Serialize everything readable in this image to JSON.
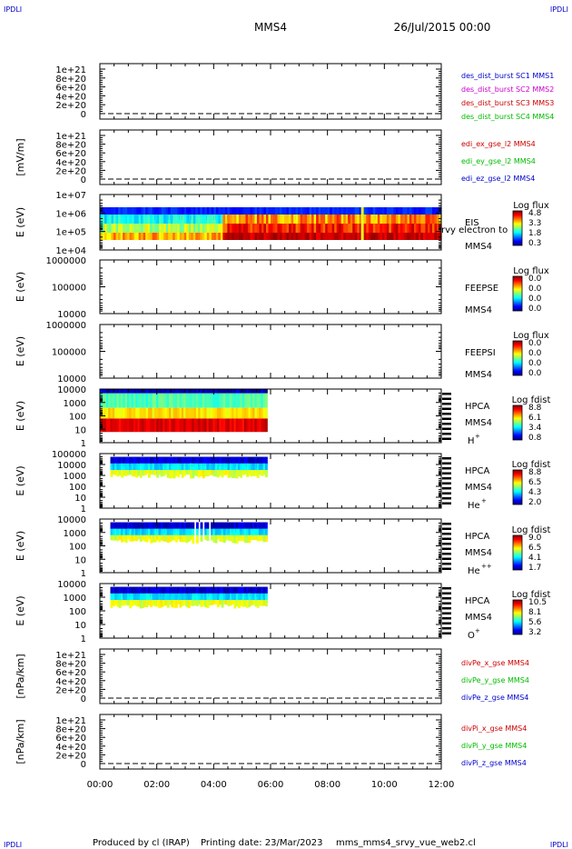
{
  "header": {
    "corner_tl": "IPDLI",
    "corner_tr": "IPDLI",
    "title": "MMS4",
    "date": "26/Jul/2015 00:00",
    "corner_bl": "IPDLI",
    "corner_br": "IPDLI"
  },
  "footer": {
    "producer": "Produced by cl (IRAP)",
    "printing_date": "Printing date: 23/Mar/2023",
    "script": "mms_mms4_srvy_vue_web2.cl"
  },
  "colors": {
    "blue": "#0000cc",
    "magenta": "#cc00cc",
    "red": "#cc0000",
    "green": "#00bb00"
  },
  "chart_data": {
    "type": "heatmap",
    "x_axis": {
      "range": [
        "00:00",
        "12:00"
      ],
      "ticks": [
        "00:00",
        "02:00",
        "04:00",
        "06:00",
        "08:00",
        "10:00",
        "12:00"
      ]
    },
    "panels": [
      {
        "id": "des",
        "kind": "line",
        "ylabel": "",
        "ticks": [
          "1e+21",
          "8e+20",
          "6e+20",
          "4e+20",
          "2e+20",
          "0"
        ],
        "legend": [
          {
            "text": "des_dist_burst SC1 MMS1",
            "color": "#0000cc"
          },
          {
            "text": "des_dist_burst SC2 MMS2",
            "color": "#cc00cc"
          },
          {
            "text": "des_dist_burst SC3 MMS3",
            "color": "#cc0000"
          },
          {
            "text": "des_dist_burst SC4 MMS4",
            "color": "#00bb00"
          }
        ]
      },
      {
        "id": "edi",
        "kind": "line",
        "ylabel": "[mV/m]",
        "ticks": [
          "1e+21",
          "8e+20",
          "6e+20",
          "4e+20",
          "2e+20",
          "0"
        ],
        "legend": [
          {
            "text": "edi_ex_gse_l2 MMS4",
            "color": "#cc0000"
          },
          {
            "text": "edi_ey_gse_l2 MMS4",
            "color": "#00bb00"
          },
          {
            "text": "edi_ez_gse_l2 MMS4",
            "color": "#0000cc"
          }
        ]
      },
      {
        "id": "eis",
        "kind": "spectrogram",
        "ylabel": "E (eV)",
        "ticks": [
          "1e+07",
          "1e+06",
          "1e+05",
          "1e+04"
        ],
        "right_labels": [
          "EIS",
          "MMS4"
        ],
        "extra_label": "rvy electron to",
        "cbar_title": "Log flux",
        "cbar_ticks": [
          "4.8",
          "3.3",
          "1.8",
          "0.3"
        ]
      },
      {
        "id": "feepse",
        "kind": "spectrogram",
        "ylabel": "E (eV)",
        "ticks": [
          "1000000",
          "100000",
          "10000"
        ],
        "right_labels": [
          "FEEPSE",
          "MMS4"
        ],
        "cbar_title": "Log flux",
        "cbar_ticks": [
          "0.0",
          "0.0",
          "0.0",
          "0.0"
        ]
      },
      {
        "id": "feepsi",
        "kind": "spectrogram",
        "ylabel": "E (eV)",
        "ticks": [
          "1000000",
          "100000",
          "10000"
        ],
        "right_labels": [
          "FEEPSI",
          "MMS4"
        ],
        "cbar_title": "Log flux",
        "cbar_ticks": [
          "0.0",
          "0.0",
          "0.0",
          "0.0"
        ]
      },
      {
        "id": "hpca_h",
        "kind": "spectrogram",
        "ylabel": "E (eV)",
        "ticks": [
          "10000",
          "1000",
          "100",
          "10",
          "1"
        ],
        "right_labels": [
          "HPCA",
          "MMS4"
        ],
        "species": "H",
        "species_sup": "+",
        "cbar_title": "Log fdist",
        "cbar_ticks": [
          "8.8",
          "6.1",
          "3.4",
          "0.8"
        ]
      },
      {
        "id": "hpca_he",
        "kind": "spectrogram",
        "ylabel": "E (eV)",
        "ticks": [
          "100000",
          "10000",
          "1000",
          "100",
          "10",
          "1"
        ],
        "right_labels": [
          "HPCA",
          "MMS4"
        ],
        "species": "He",
        "species_sup": "+",
        "cbar_title": "Log fdist",
        "cbar_ticks": [
          "8.8",
          "6.5",
          "4.3",
          "2.0"
        ]
      },
      {
        "id": "hpca_hepp",
        "kind": "spectrogram",
        "ylabel": "E (eV)",
        "ticks": [
          "10000",
          "1000",
          "100",
          "10",
          "1"
        ],
        "right_labels": [
          "HPCA",
          "MMS4"
        ],
        "species": "He",
        "species_sup": "++",
        "cbar_title": "Log fdist",
        "cbar_ticks": [
          "9.0",
          "6.5",
          "4.1",
          "1.7"
        ]
      },
      {
        "id": "hpca_o",
        "kind": "spectrogram",
        "ylabel": "E (eV)",
        "ticks": [
          "10000",
          "1000",
          "100",
          "10",
          "1"
        ],
        "right_labels": [
          "HPCA",
          "MMS4"
        ],
        "species": "O",
        "species_sup": "+",
        "cbar_title": "Log fdist",
        "cbar_ticks": [
          "10.5",
          "8.1",
          "5.6",
          "3.2"
        ]
      },
      {
        "id": "divpe",
        "kind": "line",
        "ylabel": "[nPa/km]",
        "ticks": [
          "1e+21",
          "8e+20",
          "6e+20",
          "4e+20",
          "2e+20",
          "0"
        ],
        "legend": [
          {
            "text": "divPe_x_gse MMS4",
            "color": "#cc0000"
          },
          {
            "text": "divPe_y_gse MMS4",
            "color": "#00bb00"
          },
          {
            "text": "divPe_z_gse MMS4",
            "color": "#0000cc"
          }
        ]
      },
      {
        "id": "divpi",
        "kind": "line",
        "ylabel": "[nPa/km]",
        "ticks": [
          "1e+21",
          "8e+20",
          "6e+20",
          "4e+20",
          "2e+20",
          "0"
        ],
        "legend": [
          {
            "text": "divPi_x_gse MMS4",
            "color": "#cc0000"
          },
          {
            "text": "divPi_y_gse MMS4",
            "color": "#00bb00"
          },
          {
            "text": "divPi_z_gse MMS4",
            "color": "#0000cc"
          }
        ]
      }
    ]
  }
}
